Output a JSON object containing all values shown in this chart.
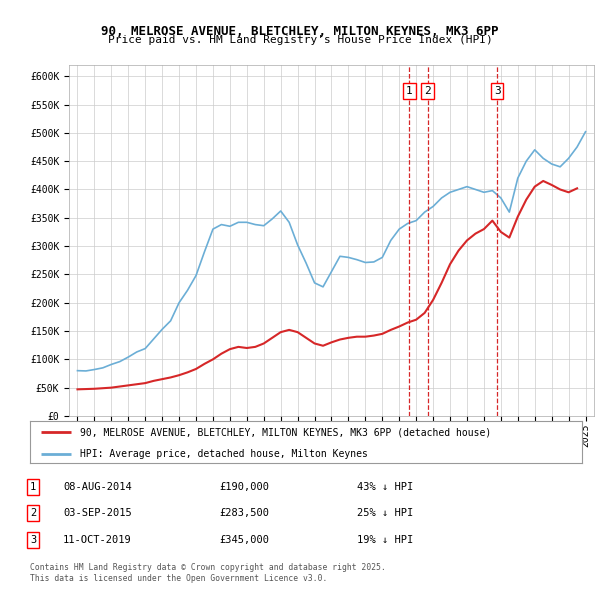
{
  "title_line1": "90, MELROSE AVENUE, BLETCHLEY, MILTON KEYNES, MK3 6PP",
  "title_line2": "Price paid vs. HM Land Registry's House Price Index (HPI)",
  "bg_color": "#ffffff",
  "grid_color": "#cccccc",
  "hpi_color": "#6baed6",
  "price_color": "#d62728",
  "ylim": [
    0,
    620000
  ],
  "yticks": [
    0,
    50000,
    100000,
    150000,
    200000,
    250000,
    300000,
    350000,
    400000,
    450000,
    500000,
    550000,
    600000
  ],
  "transactions": [
    {
      "label": "1",
      "date": "08-AUG-2014",
      "price": 190000,
      "hpi_pct": "43% ↓ HPI",
      "x_year": 2014.6
    },
    {
      "label": "2",
      "date": "03-SEP-2015",
      "price": 283500,
      "hpi_pct": "25% ↓ HPI",
      "x_year": 2015.67
    },
    {
      "label": "3",
      "date": "11-OCT-2019",
      "price": 345000,
      "hpi_pct": "19% ↓ HPI",
      "x_year": 2019.78
    }
  ],
  "legend_line1": "90, MELROSE AVENUE, BLETCHLEY, MILTON KEYNES, MK3 6PP (detached house)",
  "legend_line2": "HPI: Average price, detached house, Milton Keynes",
  "footer_line1": "Contains HM Land Registry data © Crown copyright and database right 2025.",
  "footer_line2": "This data is licensed under the Open Government Licence v3.0.",
  "hpi_data_years": [
    1995.0,
    1995.5,
    1996.0,
    1996.5,
    1997.0,
    1997.5,
    1998.0,
    1998.5,
    1999.0,
    1999.5,
    2000.0,
    2000.5,
    2001.0,
    2001.5,
    2002.0,
    2002.5,
    2003.0,
    2003.5,
    2004.0,
    2004.5,
    2005.0,
    2005.5,
    2006.0,
    2006.5,
    2007.0,
    2007.5,
    2008.0,
    2008.5,
    2009.0,
    2009.5,
    2010.0,
    2010.5,
    2011.0,
    2011.5,
    2012.0,
    2012.5,
    2013.0,
    2013.5,
    2014.0,
    2014.5,
    2015.0,
    2015.5,
    2016.0,
    2016.5,
    2017.0,
    2017.5,
    2018.0,
    2018.5,
    2019.0,
    2019.5,
    2020.0,
    2020.5,
    2021.0,
    2021.5,
    2022.0,
    2022.5,
    2023.0,
    2023.5,
    2024.0,
    2024.5,
    2025.0
  ],
  "hpi_data_values": [
    80000,
    79500,
    82000,
    85000,
    91000,
    96000,
    104000,
    113000,
    119000,
    136000,
    153000,
    168000,
    200000,
    222000,
    248000,
    290000,
    330000,
    338000,
    335000,
    342000,
    342000,
    338000,
    336000,
    348000,
    362000,
    342000,
    302000,
    270000,
    235000,
    228000,
    255000,
    282000,
    280000,
    276000,
    271000,
    272000,
    280000,
    310000,
    330000,
    340000,
    345000,
    360000,
    370000,
    385000,
    395000,
    400000,
    405000,
    400000,
    395000,
    398000,
    385000,
    360000,
    420000,
    450000,
    470000,
    455000,
    445000,
    440000,
    455000,
    475000,
    502000
  ],
  "price_data_years": [
    1995.0,
    1995.5,
    1996.0,
    1996.5,
    1997.0,
    1997.5,
    1998.0,
    1998.5,
    1999.0,
    1999.5,
    2000.0,
    2000.5,
    2001.0,
    2001.5,
    2002.0,
    2002.5,
    2003.0,
    2003.5,
    2004.0,
    2004.5,
    2005.0,
    2005.5,
    2006.0,
    2006.5,
    2007.0,
    2007.5,
    2008.0,
    2008.5,
    2009.0,
    2009.5,
    2010.0,
    2010.5,
    2011.0,
    2011.5,
    2012.0,
    2012.5,
    2013.0,
    2013.5,
    2014.0,
    2014.5,
    2015.0,
    2015.5,
    2016.0,
    2016.5,
    2017.0,
    2017.5,
    2018.0,
    2018.5,
    2019.0,
    2019.5,
    2020.0,
    2020.5,
    2021.0,
    2021.5,
    2022.0,
    2022.5,
    2023.0,
    2023.5,
    2024.0,
    2024.5
  ],
  "price_data_values": [
    47000,
    47500,
    48000,
    49000,
    50000,
    52000,
    54000,
    56000,
    58000,
    62000,
    65000,
    68000,
    72000,
    77000,
    83000,
    92000,
    100000,
    110000,
    118000,
    122000,
    120000,
    122000,
    128000,
    138000,
    148000,
    152000,
    148000,
    138000,
    128000,
    124000,
    130000,
    135000,
    138000,
    140000,
    140000,
    142000,
    145000,
    152000,
    158000,
    165000,
    170000,
    182000,
    205000,
    235000,
    268000,
    292000,
    310000,
    322000,
    330000,
    345000,
    325000,
    315000,
    352000,
    382000,
    405000,
    415000,
    408000,
    400000,
    395000,
    402000
  ],
  "xlim": [
    1994.5,
    2025.5
  ],
  "xtick_years": [
    1995,
    1996,
    1997,
    1998,
    1999,
    2000,
    2001,
    2002,
    2003,
    2004,
    2005,
    2006,
    2007,
    2008,
    2009,
    2010,
    2011,
    2012,
    2013,
    2014,
    2015,
    2016,
    2017,
    2018,
    2019,
    2020,
    2021,
    2022,
    2023,
    2024,
    2025
  ]
}
